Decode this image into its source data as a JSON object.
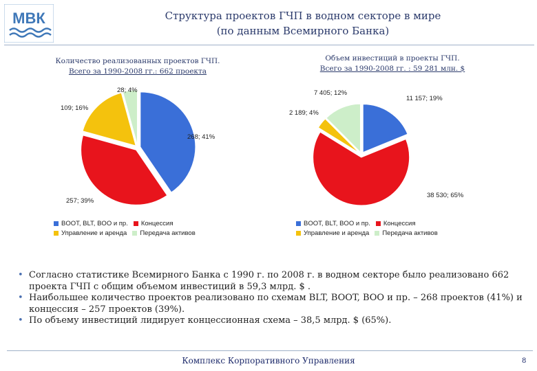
{
  "header": {
    "logo_text": "МВК",
    "title_line1": "Структура проектов ГЧП в водном секторе в мире",
    "title_line2": "(по данным Всемирного Банка)"
  },
  "left_chart": {
    "subtitle_line1": "Количество реализованных проектов ГЧП.",
    "subtitle_line2": "Всего за 1990-2008 гг.: 662 проекта"
  },
  "right_chart": {
    "subtitle_line1": "Объем инвестиций в проекты ГЧП.",
    "subtitle_line2": "Всего за 1990-2008 гг. : 59 281 млн. $"
  },
  "legend": {
    "boot": "BOOT, BLT, BOO и пр.",
    "concession": "Концессия",
    "management": "Управление и аренда",
    "transfer": "Передача активов"
  },
  "colors": {
    "boot": "#3a6fd8",
    "concession": "#e8141c",
    "management": "#f4c20d",
    "transfer": "#cdeec9",
    "title": "#2b3a6b"
  },
  "chart_data": [
    {
      "type": "pie",
      "title": "Количество реализованных проектов ГЧП. Всего за 1990-2008 гг.: 662 проекта",
      "categories": [
        "BOOT, BLT, BOO и пр.",
        "Концессия",
        "Управление и аренда",
        "Передача активов"
      ],
      "values": [
        268,
        257,
        109,
        28
      ],
      "percents": [
        41,
        39,
        16,
        4
      ],
      "labels": [
        "268; 41%",
        "257; 39%",
        "109; 16%",
        "28; 4%"
      ],
      "legend": "bottom"
    },
    {
      "type": "pie",
      "title": "Объем инвестиций в проекты ГЧП. Всего за 1990-2008 гг. : 59 281 млн. $",
      "categories": [
        "BOOT, BLT, BOO и пр.",
        "Концессия",
        "Управление и аренда",
        "Передача активов"
      ],
      "values": [
        11157,
        38530,
        2189,
        7405
      ],
      "percents": [
        19,
        65,
        4,
        12
      ],
      "labels": [
        "11 157; 19%",
        "38 530; 65%",
        "2 189; 4%",
        "7 405; 12%"
      ],
      "legend": "bottom"
    }
  ],
  "bullets": [
    "Согласно статистике Всемирного Банка с 1990 г. по 2008 г. в водном секторе было реализовано 662 проекта ГЧП с общим объемом инвестиций в 59,3 млрд. $ .",
    "Наибольшее количество проектов реализовано по схемам BLT, BOOT, BOO и пр. – 268 проектов (41%) и концессия – 257 проектов (39%).",
    "По объему инвестиций лидирует концессионная схема – 38,5 млрд. $ (65%)."
  ],
  "footer": {
    "text": "Комплекс Корпоративного Управления",
    "page": "8"
  }
}
